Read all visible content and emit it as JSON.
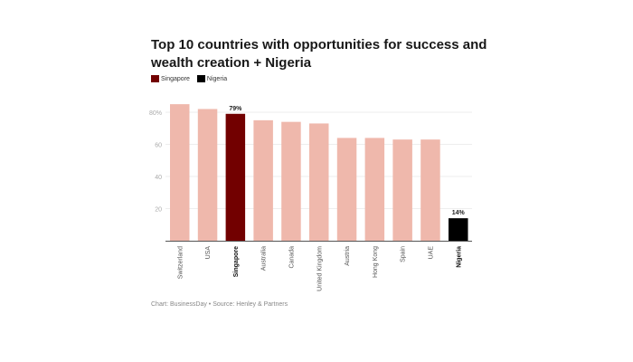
{
  "chart_data": {
    "type": "bar",
    "title": "Top 10 countries with opportunities for success and wealth creation + Nigeria",
    "categories": [
      "Switzerland",
      "USA",
      "Singapore",
      "Australia",
      "Canada",
      "United Kingdom",
      "Austria",
      "Hong Kong",
      "Spain",
      "UAE",
      "Nigeria"
    ],
    "values": [
      85,
      82,
      79,
      75,
      74,
      73,
      64,
      64,
      63,
      63,
      14
    ],
    "highlight": {
      "Singapore": "#720000",
      "Nigeria": "#000000"
    },
    "default_color": "#efb8ac",
    "data_labels": {
      "Singapore": "79%",
      "Nigeria": "14%"
    },
    "yticks": [
      20,
      40,
      60,
      80
    ],
    "ytick_labels": [
      "20",
      "40",
      "60",
      "80%"
    ],
    "ylim": [
      0,
      85
    ],
    "xlabel": "",
    "ylabel": "",
    "legend": [
      {
        "label": "Singapore",
        "color": "#720000"
      },
      {
        "label": "Nigeria",
        "color": "#000000"
      }
    ],
    "legend_placement": "top-left",
    "grid": true
  },
  "source": "Chart: BusinessDay • Source: Henley & Partners"
}
